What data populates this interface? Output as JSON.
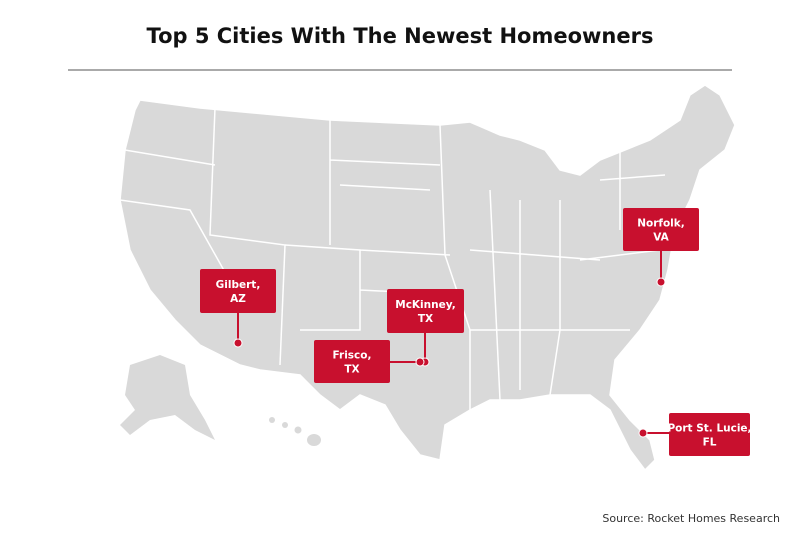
{
  "title": "Top 5 Cities With The Newest Homeowners",
  "markers": [
    {
      "lines": [
        "Gilbert,",
        "AZ"
      ]
    },
    {
      "lines": [
        "McKinney,",
        "TX"
      ]
    },
    {
      "lines": [
        "Frisco,",
        "TX"
      ]
    },
    {
      "lines": [
        "Norfolk,",
        "VA"
      ]
    },
    {
      "lines": [
        "Port St. Lucie,",
        "FL"
      ]
    }
  ],
  "source": "Source: Rocket Homes Research"
}
